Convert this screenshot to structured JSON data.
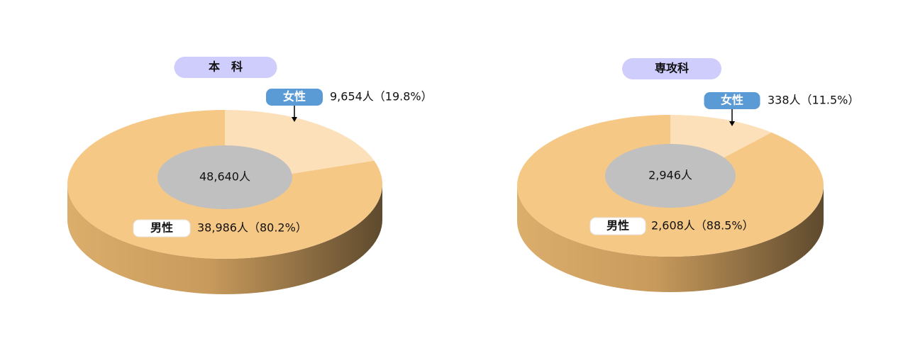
{
  "chart_data": [
    {
      "type": "donut3d",
      "title": "本　科",
      "center_label": "48,640人",
      "categories": [
        "女性",
        "男性"
      ],
      "values": [
        9654,
        38986
      ],
      "value_labels": [
        "9,654人（19.8%）",
        "38,986人（80.2%）"
      ],
      "colors": [
        "#fbe0b9",
        "#f6c886"
      ]
    },
    {
      "type": "donut3d",
      "title": "専攻科",
      "center_label": "2,946人",
      "categories": [
        "女性",
        "男性"
      ],
      "values": [
        338,
        2608
      ],
      "value_labels": [
        "338人（11.5%）",
        "2,608人（88.5%）"
      ],
      "colors": [
        "#fbe0b9",
        "#f6c886"
      ]
    }
  ]
}
